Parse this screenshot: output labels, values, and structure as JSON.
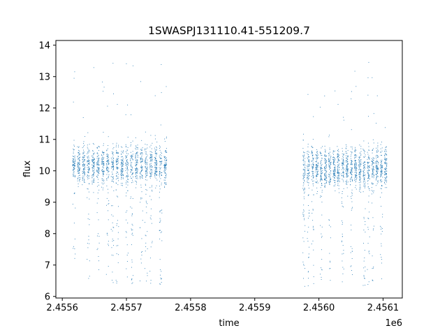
{
  "chart_data": {
    "type": "scatter",
    "title": "1SWASPJ131110.41-551209.7",
    "xlabel": "time",
    "ylabel": "flux",
    "x_offset_label": "1e6",
    "xlim": [
      2.45559,
      2.45613
    ],
    "ylim": [
      5.95,
      14.15
    ],
    "x_ticks": [
      2.4556,
      2.4557,
      2.4558,
      2.4559,
      2.456,
      2.4561
    ],
    "x_tick_labels": [
      "2.4556",
      "2.4557",
      "2.4558",
      "2.4559",
      "2.4560",
      "2.4561"
    ],
    "y_ticks": [
      6,
      7,
      8,
      9,
      10,
      11,
      12,
      13,
      14
    ],
    "y_tick_labels": [
      "6",
      "7",
      "8",
      "9",
      "10",
      "11",
      "12",
      "13",
      "14"
    ],
    "grid": false,
    "marker_color": "#1f77b4",
    "series": [
      {
        "name": "",
        "segments": [
          {
            "x_start": 2.455614,
            "x_end": 2.455764,
            "y_center": 10.2,
            "y_min": 6.4,
            "y_max": 13.7
          },
          {
            "x_start": 2.455973,
            "x_end": 2.456107,
            "y_center": 10.1,
            "y_min": 6.3,
            "y_max": 13.7
          }
        ]
      }
    ]
  }
}
